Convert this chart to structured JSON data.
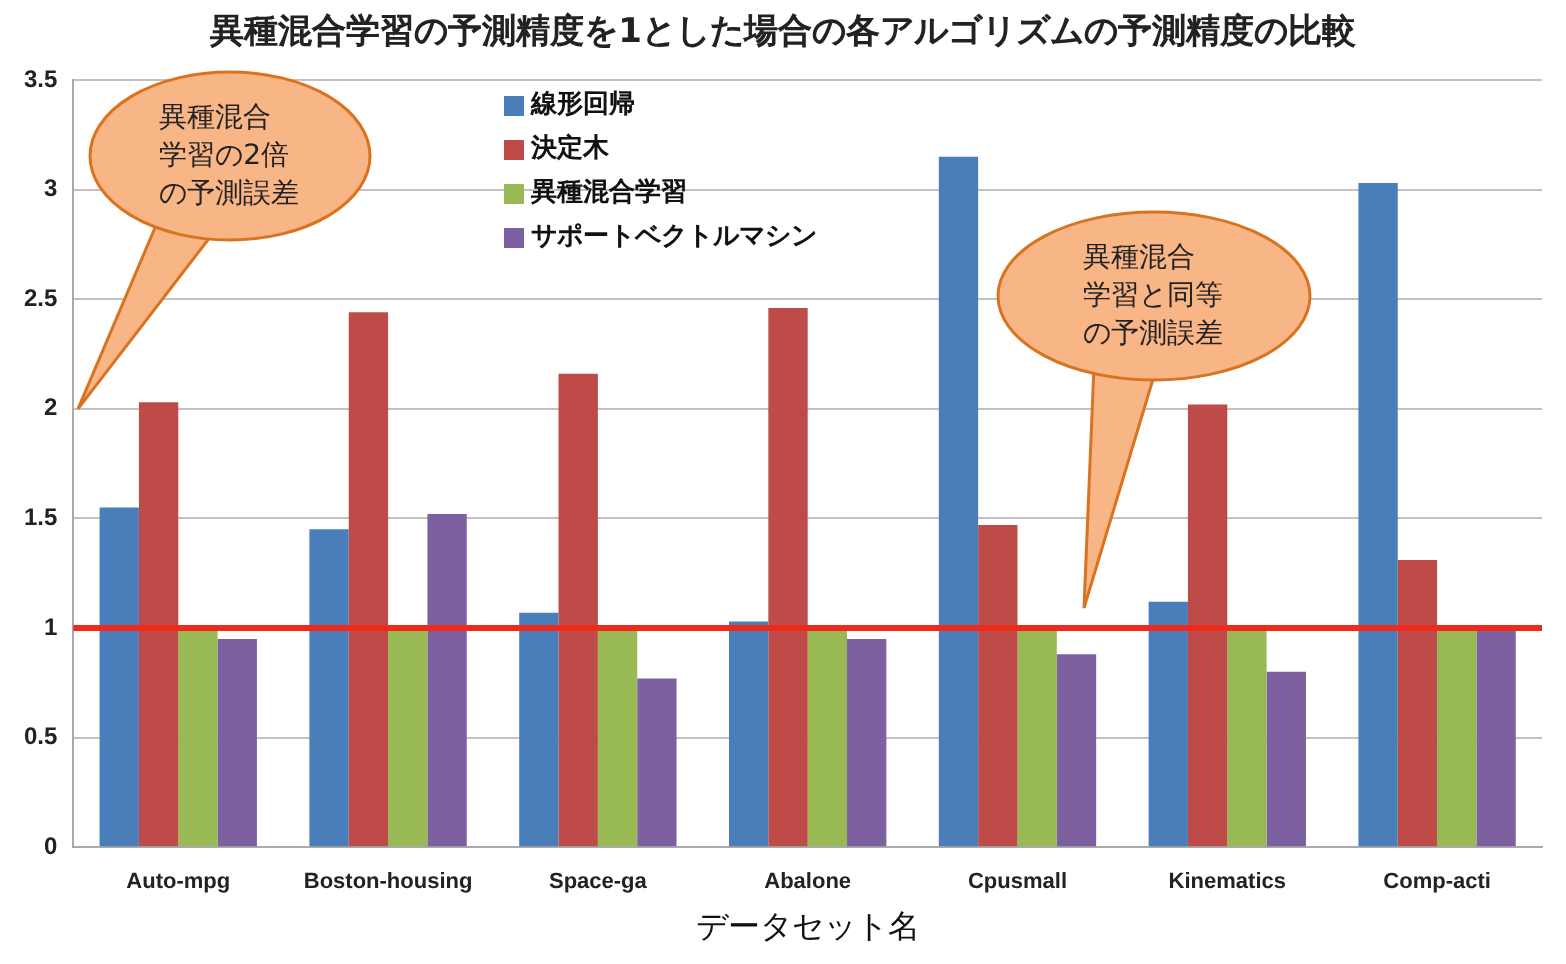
{
  "chart_data": {
    "type": "bar",
    "title": "異種混合学習の予測精度を1とした場合の各アルゴリズムの予測精度の比較",
    "xlabel": "データセット名",
    "categories": [
      "Auto-mpg",
      "Boston-housing",
      "Space-ga",
      "Abalone",
      "Cpusmall",
      "Kinematics",
      "Comp-acti"
    ],
    "series": [
      {
        "name": "線形回帰",
        "color": "#4a7ebb",
        "values": [
          1.55,
          1.45,
          1.07,
          1.03,
          3.15,
          1.12,
          3.03
        ]
      },
      {
        "name": "決定木",
        "color": "#be4b48",
        "values": [
          2.03,
          2.44,
          2.16,
          2.46,
          1.47,
          2.02,
          1.31
        ]
      },
      {
        "name": "異種混合学習",
        "color": "#98b954",
        "values": [
          1.0,
          1.0,
          1.0,
          1.0,
          1.0,
          1.0,
          1.0
        ]
      },
      {
        "name": "サポートベクトルマシン",
        "color": "#7d60a0",
        "values": [
          0.95,
          1.52,
          0.77,
          0.95,
          0.88,
          0.8,
          1.0
        ]
      }
    ],
    "ylim": [
      0,
      3.5
    ],
    "yticks": [
      0,
      0.5,
      1,
      1.5,
      2,
      2.5,
      3,
      3.5
    ],
    "grid": "y",
    "legend": "top left",
    "ref_lines": [
      {
        "axis": "y",
        "value": 1,
        "color": "#ee2a1c"
      }
    ],
    "annotations": [
      "異種混合学習の2倍の予測誤差",
      "異種混合学習と同等の予測誤差"
    ]
  }
}
